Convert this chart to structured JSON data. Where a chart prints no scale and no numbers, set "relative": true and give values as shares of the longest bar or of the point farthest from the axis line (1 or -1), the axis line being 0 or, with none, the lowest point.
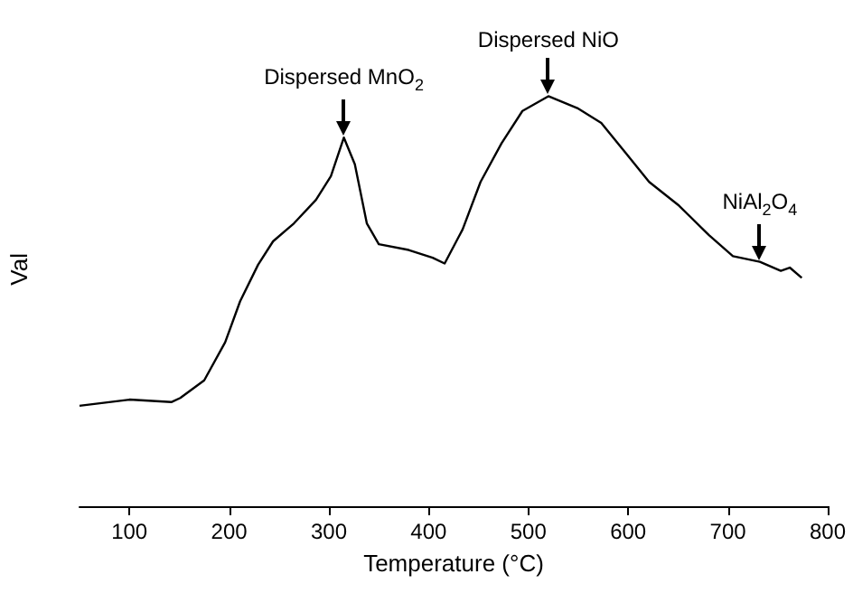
{
  "chart_data": {
    "type": "line",
    "relative": true,
    "xlabel": "Temperature (°C)",
    "ylabel": "Val",
    "xlim": [
      50,
      800
    ],
    "xticks": [
      100,
      200,
      300,
      400,
      500,
      600,
      700,
      800
    ],
    "grid": false,
    "marker": "none",
    "line_style": "solid",
    "series": [
      {
        "color": "#000000",
        "x": [
          50,
          100,
          142,
          151,
          175,
          196,
          211,
          229,
          244,
          265,
          287,
          302,
          315,
          326,
          338,
          350,
          380,
          404,
          416,
          434,
          452,
          473,
          494,
          520,
          549,
          573,
          597,
          621,
          651,
          681,
          705,
          732,
          753,
          762,
          774
        ],
        "values": [
          0.245,
          0.26,
          0.254,
          0.264,
          0.307,
          0.4,
          0.5,
          0.589,
          0.646,
          0.69,
          0.747,
          0.805,
          0.899,
          0.834,
          0.69,
          0.639,
          0.625,
          0.606,
          0.592,
          0.675,
          0.791,
          0.885,
          0.964,
          1.0,
          0.971,
          0.935,
          0.863,
          0.791,
          0.733,
          0.661,
          0.61,
          0.596,
          0.574,
          0.582,
          0.557
        ]
      }
    ],
    "annotations": [
      {
        "text": "Dispersed MnO$_{2}$",
        "x": 315,
        "y": 0.899
      },
      {
        "text": "Dispersed NiO",
        "x": 520,
        "y": 1.0
      },
      {
        "text": "NiAl$_{2}$O$_{4}$",
        "x": 732,
        "y": 0.596
      }
    ]
  }
}
